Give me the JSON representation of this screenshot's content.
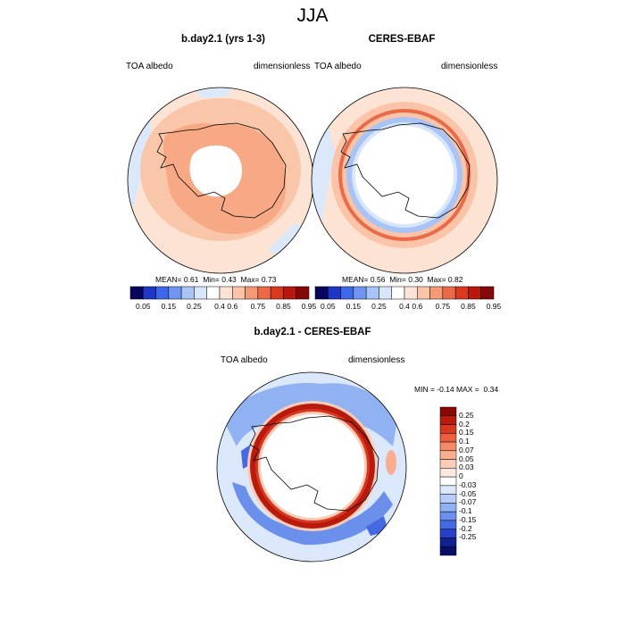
{
  "page": {
    "title": "JJA"
  },
  "panels": [
    {
      "id": "model",
      "title": "b.day2.1 (yrs 1-3)",
      "left_label": "TOA albedo",
      "right_label": "dimensionless",
      "stats": {
        "mean_label": "MEAN=",
        "mean": "0.61",
        "min_label": "Min=",
        "min": "0.43",
        "max_label": "Max=",
        "max": "0.73"
      }
    },
    {
      "id": "obs",
      "title": "CERES-EBAF",
      "left_label": "TOA albedo",
      "right_label": "dimensionless",
      "stats": {
        "mean_label": "MEAN=",
        "mean": "0.56",
        "min_label": "Min=",
        "min": "0.30",
        "max_label": "Max=",
        "max": "0.82"
      }
    }
  ],
  "albedo_colorbar": {
    "tick_labels": [
      "0.05",
      "0.15",
      "0.25",
      "0.4",
      "0.6",
      "0.75",
      "0.85",
      "0.95"
    ],
    "colors": [
      "#08055c",
      "#1f36c8",
      "#3d66e8",
      "#6f95f2",
      "#a8c3f6",
      "#d7e6fa",
      "#ffffff",
      "#fce2d6",
      "#fbc3a8",
      "#f59a77",
      "#ea6a48",
      "#d8391f",
      "#b8160f",
      "#840805"
    ]
  },
  "diff_panel": {
    "title": "b.day2.1 - CERES-EBAF",
    "left_label": "TOA albedo",
    "right_label": "dimensionless",
    "minmax": {
      "min_label": "MIN =",
      "min": "-0.14",
      "max_label": "MAX =",
      "max": "0.34"
    },
    "colorbar_labels": [
      "0.25",
      "0.2",
      "0.15",
      "0.1",
      "0.07",
      "0.05",
      "0.03",
      "0",
      "-0.03",
      "-0.05",
      "-0.07",
      "-0.1",
      "-0.15",
      "-0.2",
      "-0.25"
    ],
    "colorbar_colors": [
      "#8a0703",
      "#b81a0e",
      "#d8381f",
      "#ee5f3e",
      "#f68a66",
      "#f9ad8f",
      "#fbcdb8",
      "#fde9df",
      "#ffffff",
      "#dbe7fb",
      "#b7cdf7",
      "#90b1f2",
      "#6a90ec",
      "#4569e3",
      "#2740cc",
      "#10228f",
      "#070f6a"
    ]
  }
}
